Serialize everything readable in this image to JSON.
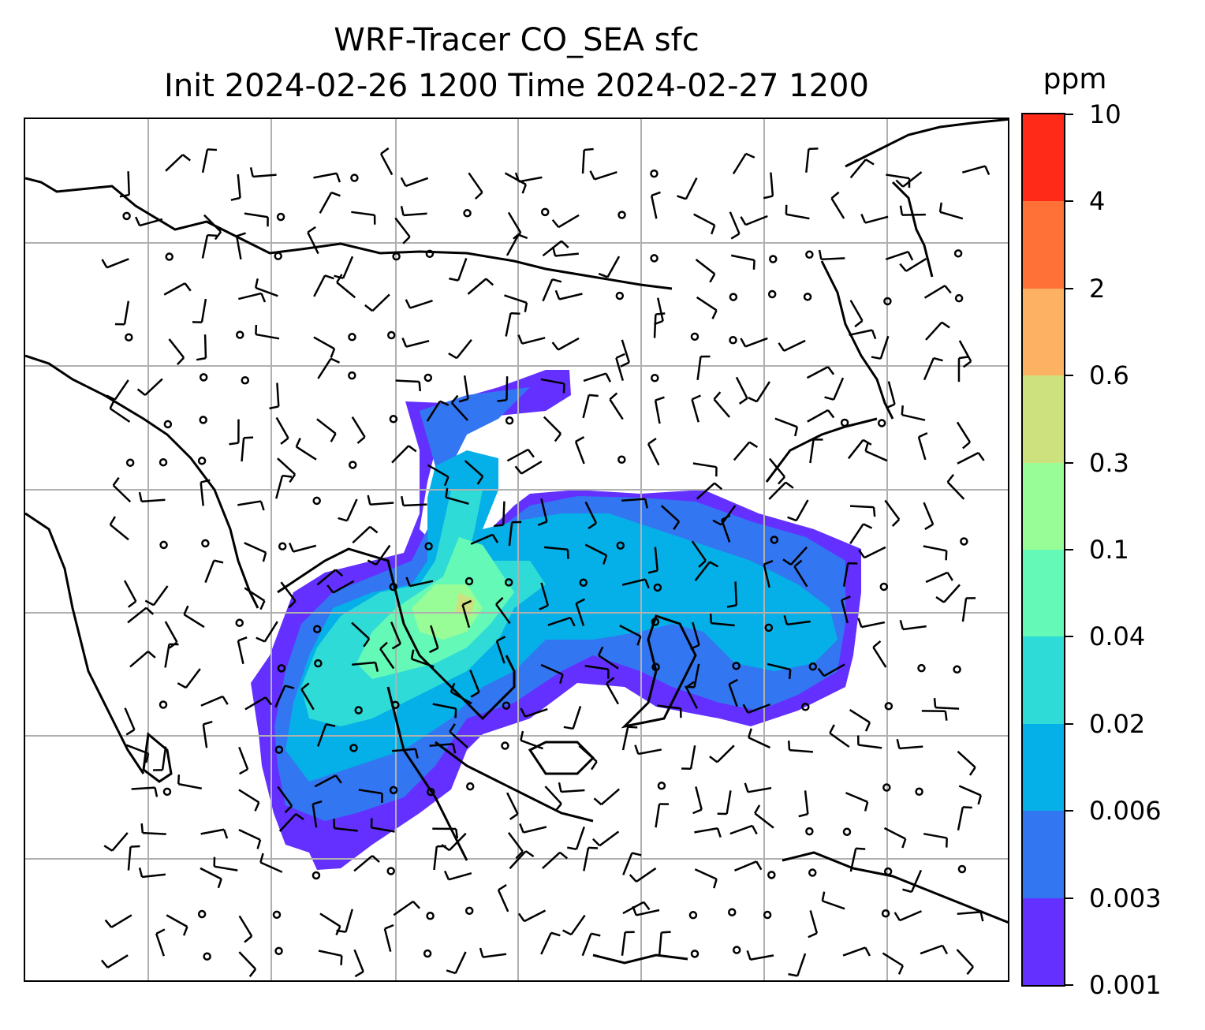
{
  "title": {
    "line1": "WRF-Tracer CO_SEA sfc",
    "line2": "Init 2024-02-26 1200 Time 2024-02-27 1200"
  },
  "colorbar": {
    "unit": "ppm",
    "tick_labels": [
      "0.001",
      "0.003",
      "0.006",
      "0.02",
      "0.04",
      "0.1",
      "0.3",
      "0.6",
      "2",
      "4",
      "10"
    ],
    "colors": [
      "#6330ff",
      "#3376f1",
      "#05b0e8",
      "#2fdbd7",
      "#64f9b6",
      "#98fd97",
      "#cde17f",
      "#fdb263",
      "#ff7137",
      "#ff2a17"
    ]
  },
  "map": {
    "gridlines": true,
    "fill_colors": {
      "level1": "#6330ff",
      "level2": "#3376f1",
      "level3": "#05b0e8",
      "level4": "#2fdbd7",
      "level5": "#64f9b6",
      "level6": "#98fd97",
      "level7": "#cde17f"
    },
    "coastline_color": "#000000",
    "grid_color": "#b0b0b0",
    "wind_barbs": true
  }
}
